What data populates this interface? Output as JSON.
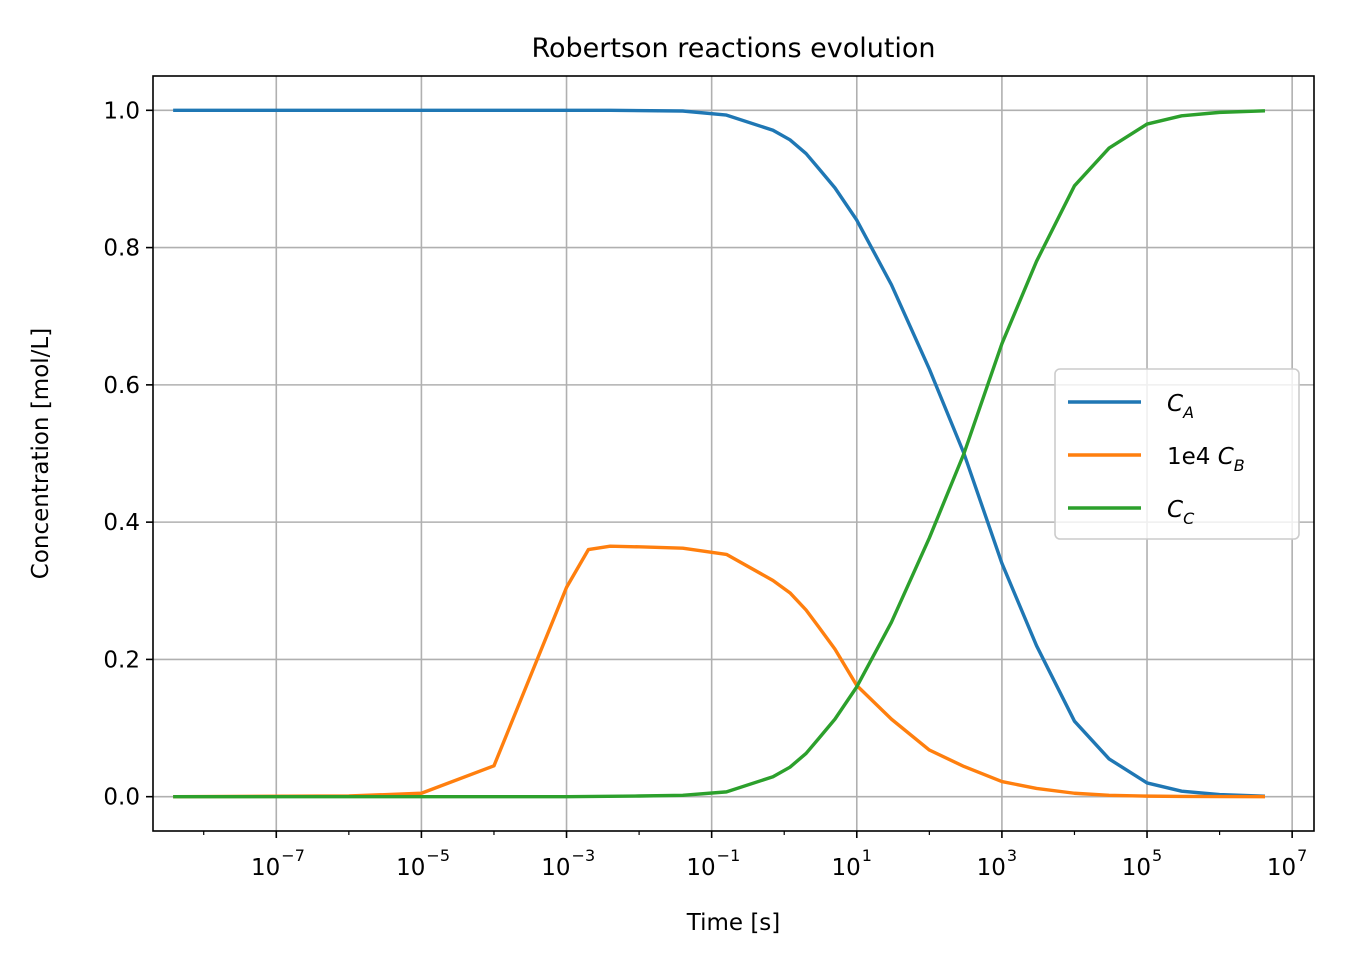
{
  "chart_data": {
    "type": "line",
    "title": "Robertson reactions evolution",
    "xlabel": "Time [s]",
    "ylabel": "Concentration [mol/L]",
    "xscale": "log",
    "xlim": [
      2e-09,
      20000000.0
    ],
    "ylim": [
      -0.05,
      1.05
    ],
    "grid": true,
    "legend_position": "center-right",
    "x_ticks": [
      {
        "base": "10",
        "exp": "−7",
        "value": 1e-07
      },
      {
        "base": "10",
        "exp": "−5",
        "value": 1e-05
      },
      {
        "base": "10",
        "exp": "−3",
        "value": 0.001
      },
      {
        "base": "10",
        "exp": "−1",
        "value": 0.1
      },
      {
        "base": "10",
        "exp": "1",
        "value": 10.0
      },
      {
        "base": "10",
        "exp": "3",
        "value": 1000.0
      },
      {
        "base": "10",
        "exp": "5",
        "value": 100000.0
      },
      {
        "base": "10",
        "exp": "7",
        "value": 10000000.0
      }
    ],
    "y_ticks": [
      {
        "label": "0.0",
        "value": 0.0
      },
      {
        "label": "0.2",
        "value": 0.2
      },
      {
        "label": "0.4",
        "value": 0.4
      },
      {
        "label": "0.6",
        "value": 0.6
      },
      {
        "label": "0.8",
        "value": 0.8
      },
      {
        "label": "1.0",
        "value": 1.0
      }
    ],
    "series": [
      {
        "legend_prefix": "",
        "legend_main": "C",
        "legend_sub": "A",
        "color": "#1f77b4",
        "x": [
          4e-09,
          1e-05,
          0.0001,
          0.001,
          0.002,
          0.004,
          0.04,
          0.16,
          0.7,
          1.2,
          2,
          3,
          5,
          10,
          30,
          100,
          300,
          1000,
          3000,
          10000,
          30000,
          100000,
          300000,
          1000000,
          4000000
        ],
        "y": [
          1.0,
          1.0,
          1.0,
          1.0,
          1.0,
          1.0,
          0.999,
          0.993,
          0.971,
          0.957,
          0.937,
          0.915,
          0.887,
          0.84,
          0.746,
          0.623,
          0.5,
          0.34,
          0.22,
          0.11,
          0.055,
          0.02,
          0.008,
          0.003,
          0.0008
        ]
      },
      {
        "legend_prefix": "1e4 ",
        "legend_main": "C",
        "legend_sub": "B",
        "color": "#ff7f0e",
        "x": [
          4e-09,
          1e-06,
          1e-05,
          0.0001,
          0.001,
          0.002,
          0.004,
          0.01,
          0.04,
          0.16,
          0.7,
          1.2,
          2,
          3,
          5,
          10,
          30,
          100,
          300,
          1000,
          3000,
          10000,
          30000,
          100000,
          300000,
          1000000,
          4000000
        ],
        "y": [
          0.0,
          0.001,
          0.005,
          0.045,
          0.305,
          0.36,
          0.365,
          0.364,
          0.362,
          0.353,
          0.315,
          0.297,
          0.272,
          0.247,
          0.215,
          0.162,
          0.113,
          0.068,
          0.044,
          0.022,
          0.012,
          0.005,
          0.002,
          0.0008,
          0.0004,
          0.0002,
          0.0001
        ]
      },
      {
        "legend_prefix": "",
        "legend_main": "C",
        "legend_sub": "C",
        "color": "#2ca02c",
        "x": [
          4e-09,
          1e-05,
          0.0001,
          0.001,
          0.01,
          0.04,
          0.16,
          0.7,
          1.2,
          2,
          3,
          5,
          10,
          30,
          100,
          300,
          1000,
          3000,
          10000,
          30000,
          100000,
          300000,
          1000000,
          4000000
        ],
        "y": [
          0.0,
          0.0,
          0.0,
          0.0,
          0.001,
          0.002,
          0.007,
          0.029,
          0.043,
          0.063,
          0.085,
          0.113,
          0.16,
          0.254,
          0.377,
          0.5,
          0.66,
          0.78,
          0.89,
          0.945,
          0.98,
          0.992,
          0.997,
          0.9992
        ]
      }
    ]
  }
}
